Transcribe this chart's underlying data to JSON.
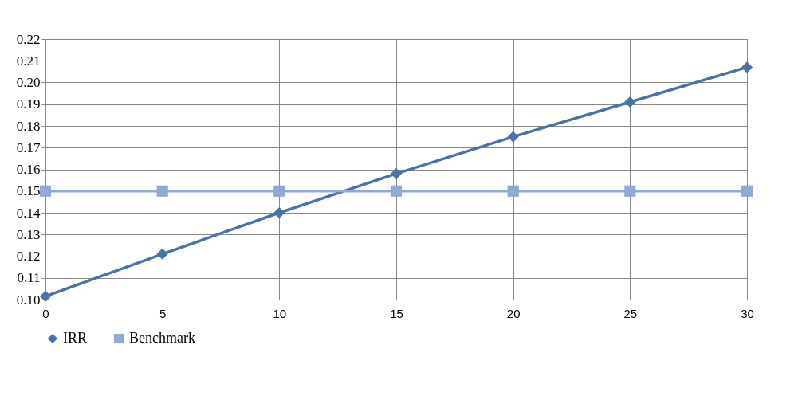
{
  "chart_data": {
    "type": "line",
    "x": [
      0,
      5,
      10,
      15,
      20,
      25,
      30
    ],
    "series": [
      {
        "name": "IRR",
        "color": "#4a72a8",
        "marker": "diamond",
        "values": [
          0.1015,
          0.121,
          0.14,
          0.158,
          0.175,
          0.191,
          0.207
        ]
      },
      {
        "name": "Benchmark",
        "color": "#8fa8d4",
        "marker": "square",
        "values": [
          0.15,
          0.15,
          0.15,
          0.15,
          0.15,
          0.15,
          0.15
        ]
      }
    ],
    "xlim": [
      0,
      30
    ],
    "xticks": [
      0,
      5,
      10,
      15,
      20,
      25,
      30
    ],
    "ylim": [
      0.1,
      0.22
    ],
    "yticks": [
      {
        "value": 0.1,
        "label": "0.10"
      },
      {
        "value": 0.11,
        "label": "0.11"
      },
      {
        "value": 0.12,
        "label": "0.12"
      },
      {
        "value": 0.13,
        "label": "0.13"
      },
      {
        "value": 0.14,
        "label": "0.14"
      },
      {
        "value": 0.15,
        "label": "0.15"
      },
      {
        "value": 0.16,
        "label": "0.16"
      },
      {
        "value": 0.17,
        "label": "0.17"
      },
      {
        "value": 0.18,
        "label": "0.18"
      },
      {
        "value": 0.19,
        "label": "0.19"
      },
      {
        "value": 0.2,
        "label": "0.20"
      },
      {
        "value": 0.21,
        "label": "0.21"
      },
      {
        "value": 0.22,
        "label": "0.22"
      }
    ],
    "grid": true,
    "legend": "bottom"
  }
}
